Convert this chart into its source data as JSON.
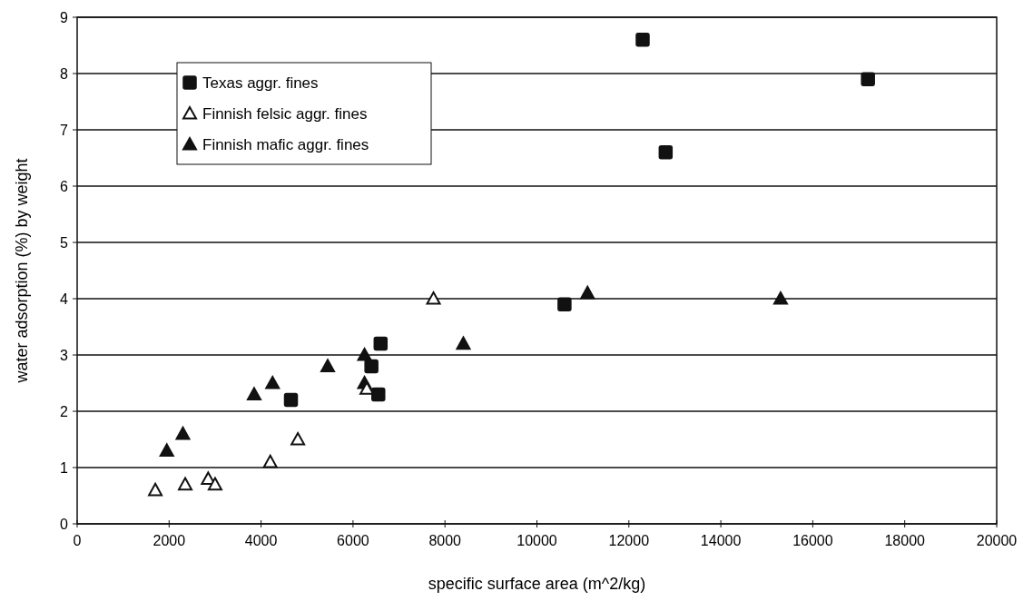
{
  "chart_data": {
    "type": "scatter",
    "xlabel": "specific surface area (m^2/kg)",
    "ylabel": "water adsorption (%) by weight",
    "xlim": [
      0,
      20000
    ],
    "xticks": [
      0,
      2000,
      4000,
      6000,
      8000,
      10000,
      12000,
      14000,
      16000,
      18000,
      20000
    ],
    "ylim": [
      0,
      9
    ],
    "yticks": [
      0,
      1,
      2,
      3,
      4,
      5,
      6,
      7,
      8,
      9
    ],
    "grid": "y",
    "legend": "top left",
    "series": [
      {
        "name": "Texas aggr. fines",
        "color": "#111111",
        "marker": "square",
        "x": [
          4650,
          6400,
          6550,
          6600,
          10600,
          12300,
          12800,
          17200
        ],
        "values": [
          2.2,
          2.8,
          2.3,
          3.2,
          3.9,
          8.6,
          6.6,
          7.9
        ]
      },
      {
        "name": "Finnish felsic aggr. fines",
        "color": "#ffffff",
        "marker": "triangle",
        "x": [
          1700,
          2350,
          2850,
          3000,
          4200,
          4800,
          6300,
          7750
        ],
        "values": [
          0.6,
          0.7,
          0.8,
          0.7,
          1.1,
          1.5,
          2.4,
          4.0
        ]
      },
      {
        "name": "Finnish mafic aggr. fines",
        "color": "#111111",
        "marker": "triangle",
        "x": [
          1950,
          2300,
          3850,
          4250,
          5450,
          6250,
          6250,
          8400,
          11100,
          15300
        ],
        "values": [
          1.3,
          1.6,
          2.3,
          2.5,
          2.8,
          2.5,
          3.0,
          3.2,
          4.1,
          4.0
        ]
      }
    ]
  }
}
